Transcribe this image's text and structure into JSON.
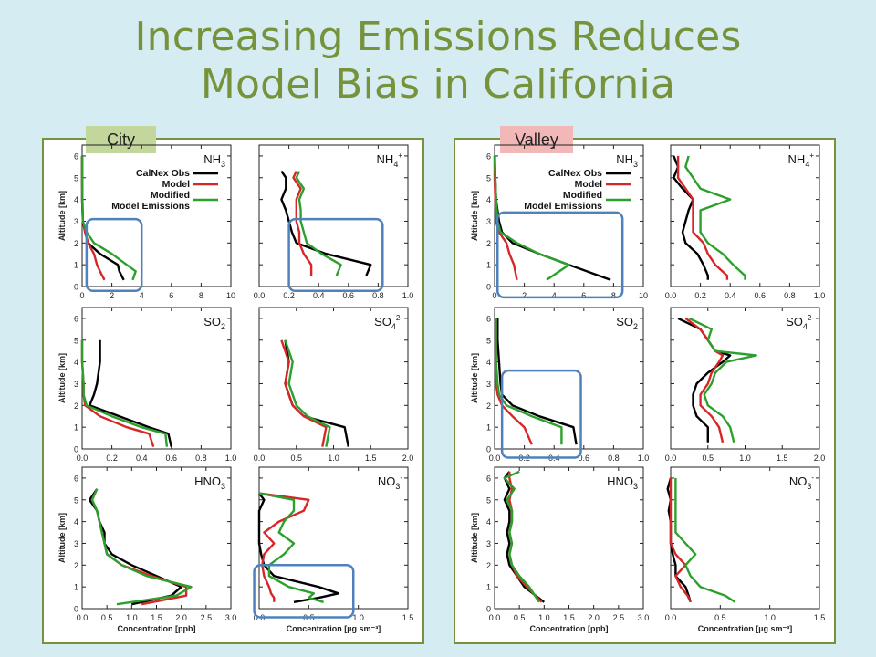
{
  "slide": {
    "title_line1": "Increasing Emissions Reduces",
    "title_line2": "Model Bias in California",
    "city_label": "City",
    "valley_label": "Valley"
  },
  "legend": {
    "obs": "CalNex Obs",
    "model": "Model",
    "modified_line1": "Modified",
    "modified_line2": "Model Emissions"
  },
  "axis_labels": {
    "ylabel": "Altitude [km]",
    "xlabel_gas": "Concentration [ppb]",
    "xlabel_aer": "Concentration [µg sm⁻³]"
  },
  "colors": {
    "obs": "#000000",
    "model": "#d62728",
    "modified": "#2ca02c",
    "highlight": "#4f81bd"
  },
  "chart_data": [
    {
      "type": "line",
      "panel": "city",
      "species": "NH3",
      "xlim": [
        0,
        10
      ],
      "xticks": [
        "0",
        "2",
        "4",
        "6",
        "8",
        "10"
      ],
      "ylim": [
        0,
        6
      ],
      "altitudes": [
        0.3,
        0.7,
        1.0,
        1.5,
        2.0,
        2.5,
        3,
        4,
        5,
        6
      ],
      "series": [
        {
          "name": "CalNex Obs",
          "values": [
            2.8,
            2.5,
            2.4,
            1.2,
            0.4,
            0.2,
            0.05,
            0,
            0,
            0
          ]
        },
        {
          "name": "Model",
          "values": [
            1.5,
            1.2,
            1.0,
            0.8,
            0.4,
            0.2,
            0.05,
            0.02,
            0,
            0
          ]
        },
        {
          "name": "Modified Model Emissions",
          "values": [
            3.4,
            3.6,
            3.0,
            2.0,
            0.8,
            0.3,
            0.05,
            0.02,
            0,
            0
          ]
        }
      ],
      "highlight": {
        "x": [
          0.3,
          4
        ],
        "y": [
          -0.2,
          3.1
        ]
      }
    },
    {
      "type": "line",
      "panel": "city",
      "species": "NH4+",
      "xlim": [
        0,
        1
      ],
      "xticks": [
        "0.0",
        "0.2",
        "0.4",
        "0.6",
        "0.8",
        "1.0"
      ],
      "ylim": [
        0,
        6
      ],
      "altitudes": [
        0.5,
        1.0,
        1.5,
        2.0,
        2.5,
        3,
        3.5,
        4,
        4.5,
        5,
        5.3
      ],
      "series": [
        {
          "name": "CalNex Obs",
          "values": [
            0.72,
            0.75,
            0.45,
            0.25,
            0.22,
            0.2,
            0.18,
            0.15,
            0.18,
            0.18,
            0.15
          ]
        },
        {
          "name": "Model",
          "values": [
            0.35,
            0.35,
            0.3,
            0.27,
            0.27,
            0.25,
            0.25,
            0.25,
            0.28,
            0.23,
            0.25
          ]
        },
        {
          "name": "Modified Model Emissions",
          "values": [
            0.52,
            0.55,
            0.42,
            0.32,
            0.3,
            0.28,
            0.28,
            0.27,
            0.3,
            0.25,
            0.27
          ]
        }
      ],
      "highlight": {
        "x": [
          0.2,
          0.83
        ],
        "y": [
          -0.2,
          3.1
        ]
      }
    },
    {
      "type": "line",
      "panel": "city",
      "species": "SO2",
      "xlim": [
        0,
        1
      ],
      "xticks": [
        "0.0",
        "0.2",
        "0.4",
        "0.6",
        "0.8",
        "1.0"
      ],
      "ylim": [
        0,
        6
      ],
      "altitudes": [
        0.1,
        0.7,
        1.0,
        1.5,
        2.0,
        2.5,
        3,
        4,
        5
      ],
      "series": [
        {
          "name": "CalNex Obs",
          "values": [
            0.6,
            0.58,
            0.45,
            0.25,
            0.05,
            0.08,
            0.1,
            0.12,
            0.12
          ]
        },
        {
          "name": "Model",
          "values": [
            0.48,
            0.45,
            0.3,
            0.12,
            0.02,
            0.01,
            0.01,
            0,
            0
          ]
        },
        {
          "name": "Modified Model Emissions",
          "values": [
            0.57,
            0.56,
            0.4,
            0.2,
            0.03,
            0.01,
            0.01,
            0,
            0
          ]
        }
      ]
    },
    {
      "type": "line",
      "panel": "city",
      "species": "SO42-",
      "xlim": [
        0,
        2
      ],
      "xticks": [
        "0.0",
        "0.5",
        "1.0",
        "1.5",
        "2.0"
      ],
      "ylim": [
        0,
        6
      ],
      "altitudes": [
        0.1,
        1.0,
        1.5,
        2.0,
        3,
        4,
        5
      ],
      "series": [
        {
          "name": "CalNex Obs",
          "values": [
            1.2,
            1.15,
            0.6,
            0.45,
            0.35,
            0.4,
            0.35
          ]
        },
        {
          "name": "Model",
          "values": [
            0.85,
            0.9,
            0.6,
            0.45,
            0.35,
            0.4,
            0.3
          ]
        },
        {
          "name": "Modified Model Emissions",
          "values": [
            0.9,
            0.95,
            0.65,
            0.5,
            0.4,
            0.45,
            0.35
          ]
        }
      ]
    },
    {
      "type": "line",
      "panel": "city",
      "species": "HNO3",
      "xlim": [
        0,
        3
      ],
      "xticks": [
        "0.0",
        "0.5",
        "1.0",
        "1.5",
        "2.0",
        "2.5",
        "3.0"
      ],
      "ylim": [
        0,
        6
      ],
      "altitudes": [
        0.2,
        0.6,
        1.0,
        1.5,
        2.0,
        2.5,
        3.0,
        3.5,
        4.0,
        4.5,
        5.0,
        5.5
      ],
      "series": [
        {
          "name": "CalNex Obs",
          "values": [
            1.0,
            1.8,
            2.0,
            1.5,
            1.0,
            0.6,
            0.45,
            0.45,
            0.35,
            0.3,
            0.15,
            0.3
          ]
        },
        {
          "name": "Model",
          "values": [
            1.2,
            2.1,
            2.1,
            1.4,
            0.8,
            0.5,
            0.45,
            0.4,
            0.35,
            0.3,
            0.2,
            0.3
          ]
        },
        {
          "name": "Modified Model Emissions",
          "values": [
            0.7,
            1.9,
            2.2,
            1.3,
            0.8,
            0.5,
            0.45,
            0.4,
            0.35,
            0.3,
            0.2,
            0.3
          ]
        }
      ]
    },
    {
      "type": "line",
      "panel": "city",
      "species": "NO3-",
      "xlim": [
        0,
        1.5
      ],
      "xticks": [
        "0.0",
        "0.5",
        "1.0",
        "1.5"
      ],
      "ylim": [
        0,
        6
      ],
      "altitudes": [
        0.3,
        0.5,
        0.7,
        1.0,
        1.5,
        2.0,
        2.5,
        3.0,
        3.5,
        4.0,
        4.5,
        5.0,
        5.3
      ],
      "series": [
        {
          "name": "CalNex Obs",
          "values": [
            0.35,
            0.6,
            0.8,
            0.6,
            0.15,
            0.05,
            0.02,
            0.0,
            0.0,
            0.0,
            0.0,
            0.05,
            0.0
          ]
        },
        {
          "name": "Model",
          "values": [
            0.15,
            0.15,
            0.12,
            0.1,
            0.05,
            0.03,
            0.05,
            0.15,
            0.05,
            0.2,
            0.45,
            0.5,
            0.0
          ]
        },
        {
          "name": "Modified Model Emissions",
          "values": [
            0.65,
            0.5,
            0.55,
            0.3,
            0.1,
            0.1,
            0.25,
            0.35,
            0.2,
            0.25,
            0.35,
            0.35,
            0.0
          ]
        }
      ],
      "highlight": {
        "x": [
          -0.05,
          0.95
        ],
        "y": [
          -0.4,
          2.0
        ]
      }
    },
    {
      "type": "line",
      "panel": "valley",
      "species": "NH3",
      "xlim": [
        0,
        10
      ],
      "xticks": [
        "0",
        "2",
        "4",
        "6",
        "8",
        "10"
      ],
      "ylim": [
        0,
        6
      ],
      "altitudes": [
        0.3,
        1.0,
        1.5,
        2.0,
        2.5,
        3,
        4,
        5,
        6
      ],
      "series": [
        {
          "name": "CalNex Obs",
          "values": [
            7.8,
            5,
            3,
            1.2,
            0.5,
            0.3,
            0.1,
            0.05,
            0.02
          ]
        },
        {
          "name": "Model",
          "values": [
            1.5,
            1.3,
            1.0,
            0.8,
            0.3,
            0.1,
            0.05,
            0,
            0
          ]
        },
        {
          "name": "Modified Model Emissions",
          "values": [
            3.5,
            5.0,
            3.0,
            1.5,
            0.4,
            0.2,
            0.1,
            0.05,
            0
          ]
        }
      ],
      "highlight": {
        "x": [
          0.2,
          8.6
        ],
        "y": [
          -0.5,
          3.4
        ]
      }
    },
    {
      "type": "line",
      "panel": "valley",
      "species": "NH4+",
      "xlim": [
        0,
        1
      ],
      "xticks": [
        "0.0",
        "0.2",
        "0.4",
        "0.6",
        "0.8",
        "1.0"
      ],
      "ylim": [
        0,
        6
      ],
      "altitudes": [
        0.3,
        0.5,
        1.0,
        1.5,
        2.0,
        2.5,
        3,
        3.5,
        4,
        4.5,
        5,
        5.5,
        6
      ],
      "series": [
        {
          "name": "CalNex Obs",
          "values": [
            0.25,
            0.25,
            0.22,
            0.18,
            0.1,
            0.08,
            0.1,
            0.12,
            0.15,
            0.08,
            0.02,
            0.05,
            0.02
          ]
        },
        {
          "name": "Model",
          "values": [
            0.38,
            0.38,
            0.3,
            0.25,
            0.22,
            0.15,
            0.15,
            0.15,
            0.15,
            0.1,
            0.05,
            0.05,
            0.05
          ]
        },
        {
          "name": "Modified Model Emissions",
          "values": [
            0.5,
            0.5,
            0.42,
            0.35,
            0.25,
            0.2,
            0.2,
            0.2,
            0.4,
            0.2,
            0.15,
            0.1,
            0.12
          ]
        }
      ]
    },
    {
      "type": "line",
      "panel": "valley",
      "species": "SO2",
      "xlim": [
        0,
        1
      ],
      "xticks": [
        "0.0",
        "0.2",
        "0.4",
        "0.6",
        "0.8",
        "1.0"
      ],
      "ylim": [
        0,
        6
      ],
      "altitudes": [
        0.2,
        1.0,
        1.5,
        2.0,
        2.5,
        3,
        4,
        5,
        6
      ],
      "series": [
        {
          "name": "CalNex Obs",
          "values": [
            0.55,
            0.53,
            0.3,
            0.12,
            0.05,
            0.04,
            0.03,
            0.02,
            0.02
          ]
        },
        {
          "name": "Model",
          "values": [
            0.25,
            0.2,
            0.12,
            0.05,
            0.02,
            0.01,
            0.01,
            0.01,
            0.01
          ]
        },
        {
          "name": "Modified Model Emissions",
          "values": [
            0.45,
            0.45,
            0.25,
            0.08,
            0.03,
            0.02,
            0.01,
            0.01,
            0.01
          ]
        }
      ],
      "highlight": {
        "x": [
          0.05,
          0.58
        ],
        "y": [
          -0.4,
          3.6
        ]
      }
    },
    {
      "type": "line",
      "panel": "valley",
      "species": "SO42-",
      "xlim": [
        0,
        2
      ],
      "xticks": [
        "0.0",
        "0.5",
        "1.0",
        "1.5",
        "2.0"
      ],
      "ylim": [
        0,
        6
      ],
      "altitudes": [
        0.3,
        1.0,
        1.5,
        2.0,
        2.5,
        3,
        3.5,
        4,
        4.3,
        4.5,
        5,
        5.5,
        6
      ],
      "series": [
        {
          "name": "CalNex Obs",
          "values": [
            0.5,
            0.5,
            0.35,
            0.3,
            0.3,
            0.35,
            0.5,
            0.7,
            0.8,
            0.6,
            0.5,
            0.4,
            0.1
          ]
        },
        {
          "name": "Model",
          "values": [
            0.7,
            0.65,
            0.55,
            0.4,
            0.4,
            0.5,
            0.55,
            0.65,
            0.7,
            0.6,
            0.5,
            0.4,
            0.2
          ]
        },
        {
          "name": "Modified Model Emissions",
          "values": [
            0.85,
            0.8,
            0.7,
            0.5,
            0.45,
            0.55,
            0.6,
            0.75,
            1.15,
            0.6,
            0.5,
            0.55,
            0.25
          ]
        }
      ]
    },
    {
      "type": "line",
      "panel": "valley",
      "species": "HNO3",
      "xlim": [
        0,
        3
      ],
      "xticks": [
        "0.0",
        "0.5",
        "1.0",
        "1.5",
        "2.0",
        "2.5",
        "3.0"
      ],
      "ylim": [
        0,
        6
      ],
      "altitudes": [
        0.3,
        1.0,
        1.5,
        2.0,
        2.5,
        3.0,
        3.5,
        4.0,
        4.5,
        5.0,
        5.5,
        6.0,
        6.3
      ],
      "series": [
        {
          "name": "CalNex Obs",
          "values": [
            1.0,
            0.6,
            0.45,
            0.3,
            0.25,
            0.3,
            0.25,
            0.3,
            0.3,
            0.2,
            0.3,
            0.2,
            0.3
          ]
        },
        {
          "name": "Model",
          "values": [
            0.95,
            0.65,
            0.45,
            0.35,
            0.3,
            0.35,
            0.3,
            0.35,
            0.35,
            0.3,
            0.35,
            0.3,
            0.3
          ]
        },
        {
          "name": "Modified Model Emissions",
          "values": [
            0.9,
            0.7,
            0.5,
            0.35,
            0.3,
            0.35,
            0.3,
            0.35,
            0.35,
            0.25,
            0.4,
            0.2,
            0.5
          ]
        }
      ]
    },
    {
      "type": "line",
      "panel": "valley",
      "species": "NO3-",
      "xlim": [
        0,
        1.5
      ],
      "xticks": [
        "0.0",
        "0.5",
        "1.0",
        "1.5"
      ],
      "ylim": [
        0,
        6
      ],
      "altitudes": [
        0.3,
        0.6,
        1.0,
        1.5,
        2.0,
        2.5,
        3.0,
        3.5,
        4.0,
        4.5,
        5.0,
        5.5,
        6.0
      ],
      "series": [
        {
          "name": "CalNex Obs",
          "values": [
            0.2,
            0.18,
            0.15,
            0.05,
            0.05,
            0.02,
            0.0,
            0.0,
            0.0,
            -0.02,
            0.0,
            -0.03,
            0.0
          ]
        },
        {
          "name": "Model",
          "values": [
            0.2,
            0.17,
            0.1,
            0.05,
            0.15,
            0.05,
            0.0,
            0.0,
            0.0,
            0.0,
            0.0,
            0.0,
            0.0
          ]
        },
        {
          "name": "Modified Model Emissions",
          "values": [
            0.65,
            0.55,
            0.3,
            0.2,
            0.15,
            0.25,
            0.15,
            0.05,
            0.05,
            0.05,
            0.05,
            0.05,
            0.05
          ]
        }
      ]
    }
  ]
}
